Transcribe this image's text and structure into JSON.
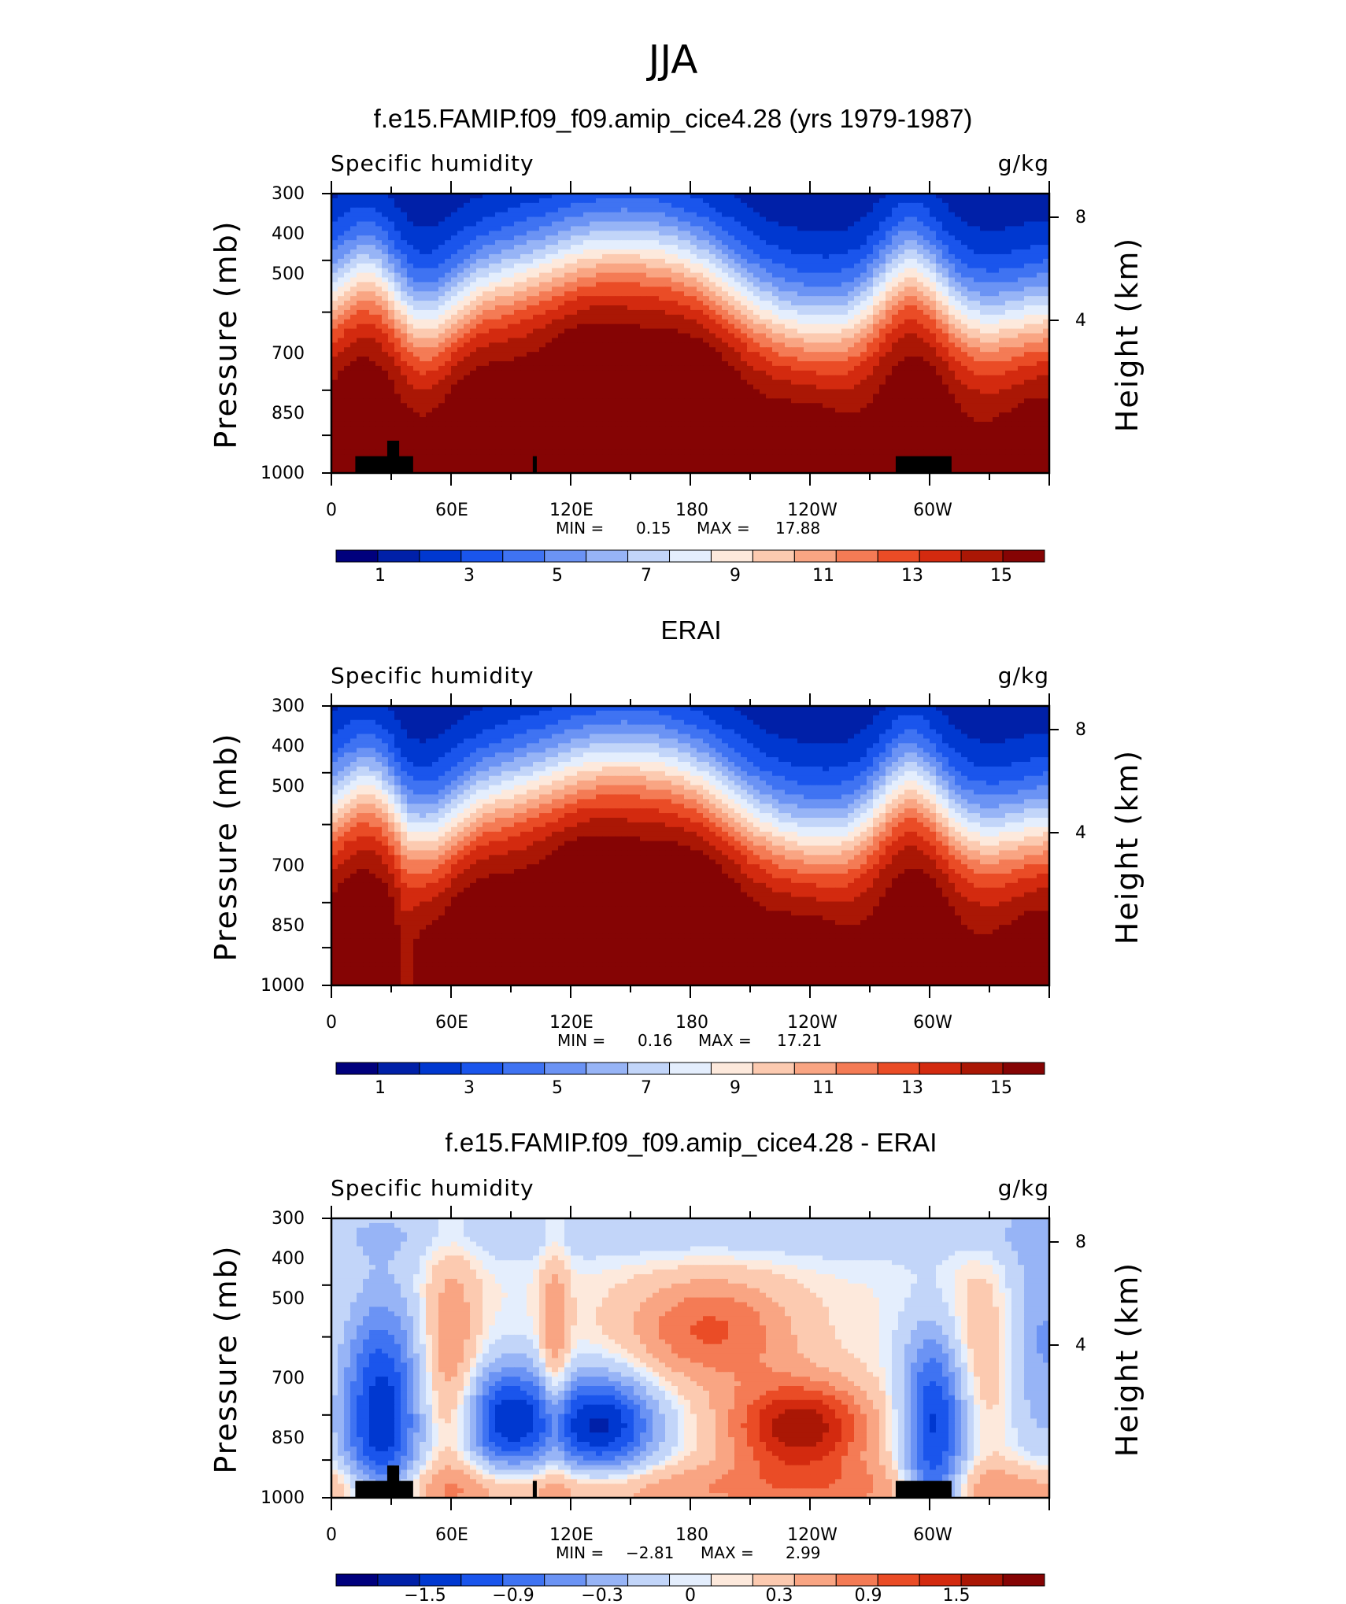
{
  "figure": {
    "title": "JJA"
  },
  "colors": {
    "full_scale": [
      "#00007d",
      "#0020a8",
      "#0038d0",
      "#1a55ec",
      "#3f73f2",
      "#6b93f4",
      "#97b4f6",
      "#c2d5f9",
      "#e4eefd",
      "#fde9dc",
      "#fccab0",
      "#f9a583",
      "#f47b55",
      "#ea4c26",
      "#d32a0f",
      "#aa1705",
      "#850404"
    ],
    "diff_scale": [
      "#00007d",
      "#0020a8",
      "#0038d0",
      "#1a55ec",
      "#3f73f2",
      "#6b93f4",
      "#97b4f6",
      "#c2d5f9",
      "#e4eefd",
      "#fde9dc",
      "#fccab0",
      "#f9a583",
      "#f47b55",
      "#ea4c26",
      "#d32a0f",
      "#aa1705",
      "#850404"
    ]
  },
  "chart_data": [
    {
      "type": "heatmap",
      "title": "f.e15.FAMIP.f09_f09.amip_cice4.28 (yrs 1979-1987)",
      "left_label": "Specific humidity",
      "right_label": "g/kg",
      "ylabel": "Pressure (mb)",
      "y2label": "Height (km)",
      "x_ticks": [
        "0",
        "60E",
        "120E",
        "180",
        "120W",
        "60W"
      ],
      "y_ticks": [
        "300",
        "400",
        "500",
        "700",
        "850",
        "1000"
      ],
      "y2_ticks": [
        "8",
        "4"
      ],
      "min_label": "MIN =",
      "min_value": "0.15",
      "max_label": "MAX =",
      "max_value": "17.88",
      "colorbar_labels": [
        "1",
        "3",
        "5",
        "7",
        "9",
        "11",
        "13",
        "15"
      ],
      "xlim": [
        0,
        360
      ],
      "ylim": [
        1000,
        300
      ],
      "topography": true,
      "field": "full",
      "offset": 0
    },
    {
      "type": "heatmap",
      "title": "ERAI",
      "left_label": "Specific humidity",
      "right_label": "g/kg",
      "ylabel": "Pressure (mb)",
      "y2label": "Height (km)",
      "x_ticks": [
        "0",
        "60E",
        "120E",
        "180",
        "120W",
        "60W"
      ],
      "y_ticks": [
        "300",
        "400",
        "500",
        "700",
        "850",
        "1000"
      ],
      "y2_ticks": [
        "8",
        "4"
      ],
      "min_label": "MIN =",
      "min_value": "0.16",
      "max_label": "MAX =",
      "max_value": "17.21",
      "colorbar_labels": [
        "1",
        "3",
        "5",
        "7",
        "9",
        "11",
        "13",
        "15"
      ],
      "xlim": [
        0,
        360
      ],
      "ylim": [
        1000,
        300
      ],
      "topography": false,
      "field": "full",
      "offset": 0.3
    },
    {
      "type": "heatmap",
      "title": "f.e15.FAMIP.f09_f09.amip_cice4.28 - ERAI",
      "left_label": "Specific humidity",
      "right_label": "g/kg",
      "ylabel": "Pressure (mb)",
      "y2label": "Height (km)",
      "x_ticks": [
        "0",
        "60E",
        "120E",
        "180",
        "120W",
        "60W"
      ],
      "y_ticks": [
        "300",
        "400",
        "500",
        "700",
        "850",
        "1000"
      ],
      "y2_ticks": [
        "8",
        "4"
      ],
      "min_label": "MIN =",
      "min_value": "−2.81",
      "max_label": "MAX =",
      "max_value": "2.99",
      "colorbar_labels": [
        "−1.5",
        "−0.9",
        "−0.3",
        "0",
        "0.3",
        "0.9",
        "1.5"
      ],
      "xlim": [
        0,
        360
      ],
      "ylim": [
        1000,
        300
      ],
      "topography": true,
      "field": "diff",
      "offset": 0
    }
  ]
}
